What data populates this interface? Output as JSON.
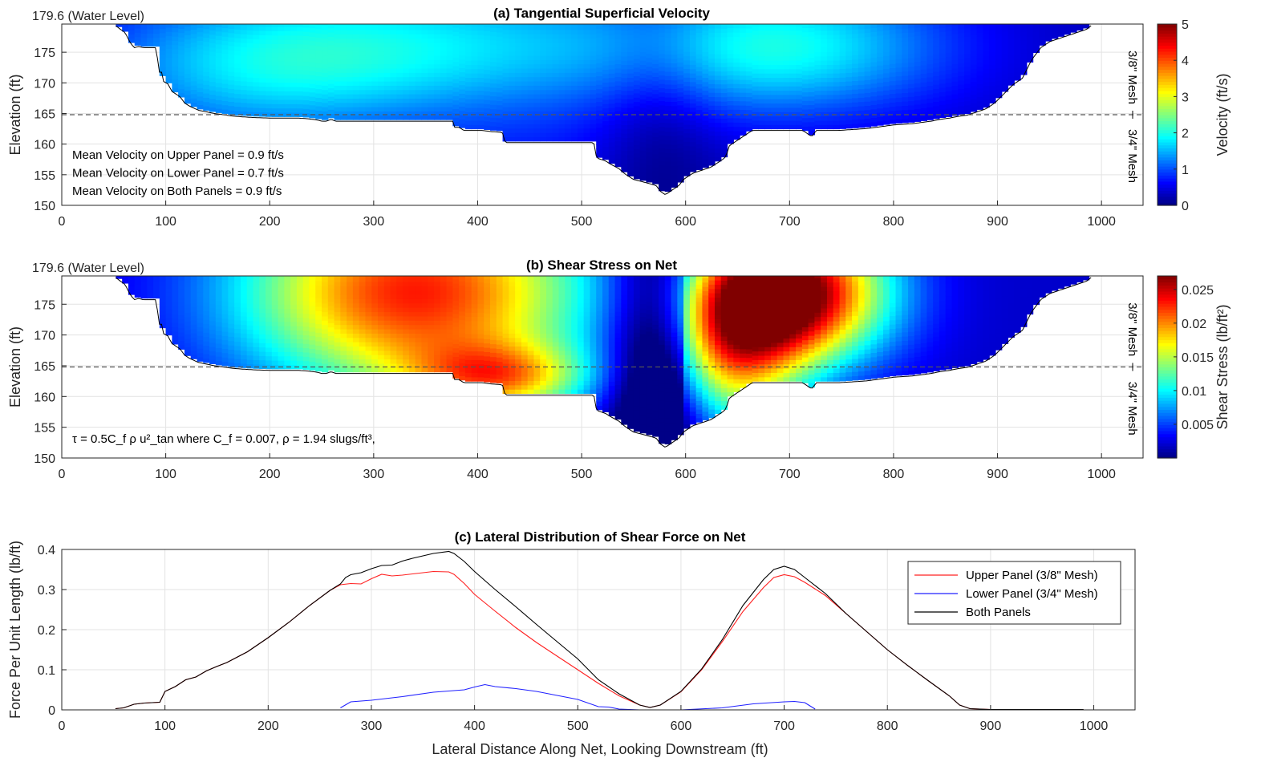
{
  "chart_data": [
    {
      "id": "velocity",
      "type": "heatmap",
      "title": "(a) Tangential Superficial Velocity",
      "ylabel": "Elevation (ft)",
      "xlim": [
        0,
        1040
      ],
      "ylim": [
        150,
        179.6
      ],
      "xticks": [
        0,
        100,
        200,
        300,
        400,
        500,
        600,
        700,
        800,
        900,
        1000
      ],
      "yticks": [
        150,
        155,
        160,
        165,
        170,
        175
      ],
      "water_level_label": "179.6 (Water Level)",
      "panel_divide_elevation": 164.8,
      "mesh_labels": [
        "3/8\" Mesh",
        "3/4\" Mesh"
      ],
      "colorbar": {
        "label": "Velocity (ft/s)",
        "range": [
          0,
          5
        ],
        "ticks": [
          0,
          1,
          2,
          3,
          4,
          5
        ]
      },
      "field_peaks": [
        {
          "x": 360,
          "z": 176,
          "value": 1.6
        },
        {
          "x": 180,
          "z": 172,
          "value": 1.2
        },
        {
          "x": 700,
          "z": 176,
          "value": 1.75
        },
        {
          "x": 570,
          "z": 168,
          "value": 0.1
        }
      ],
      "annotations": [
        "Mean Velocity on Upper Panel = 0.9 ft/s",
        "Mean Velocity on Lower Panel = 0.7 ft/s",
        "Mean Velocity on Both Panels = 0.9 ft/s"
      ]
    },
    {
      "id": "shear",
      "type": "heatmap",
      "title": "(b) Shear Stress on Net",
      "ylabel": "Elevation (ft)",
      "xlim": [
        0,
        1040
      ],
      "ylim": [
        150,
        179.6
      ],
      "xticks": [
        0,
        100,
        200,
        300,
        400,
        500,
        600,
        700,
        800,
        900,
        1000
      ],
      "yticks": [
        150,
        155,
        160,
        165,
        170,
        175
      ],
      "water_level_label": "179.6 (Water Level)",
      "panel_divide_elevation": 164.8,
      "mesh_labels": [
        "3/8\" Mesh",
        "3/4\" Mesh"
      ],
      "colorbar": {
        "label": "Shear Stress (lb/ft²)",
        "range": [
          0,
          0.027
        ],
        "ticks": [
          0.005,
          0.01,
          0.015,
          0.02,
          0.025
        ]
      },
      "annotations": [
        "τ = 0.5C_f ρ u²_tan where C_f = 0.007, ρ = 1.94 slugs/ft³,"
      ]
    },
    {
      "id": "force",
      "type": "line",
      "title": "(c) Lateral Distribution of Shear Force on Net",
      "xlabel": "Lateral Distance Along Net, Looking Downstream (ft)",
      "ylabel": "Force Per Unit Length (lb/ft)",
      "xlim": [
        0,
        1040
      ],
      "ylim": [
        0,
        0.4
      ],
      "xticks": [
        0,
        100,
        200,
        300,
        400,
        500,
        600,
        700,
        800,
        900,
        1000
      ],
      "yticks": [
        0,
        0.1,
        0.2,
        0.3,
        0.4
      ],
      "legend_position": "top-right",
      "series": [
        {
          "name": "Upper Panel (3/8\" Mesh)",
          "color": "#ff2020",
          "x": [
            52,
            60,
            70,
            80,
            95,
            100,
            110,
            120,
            130,
            140,
            150,
            160,
            180,
            200,
            220,
            240,
            260,
            270,
            280,
            290,
            300,
            310,
            320,
            330,
            340,
            360,
            375,
            380,
            390,
            400,
            420,
            440,
            460,
            480,
            500,
            520,
            540,
            560,
            570,
            580,
            600,
            620,
            640,
            660,
            680,
            690,
            700,
            710,
            720,
            740,
            760,
            780,
            800,
            820,
            840,
            860,
            870,
            880,
            900,
            950,
            990
          ],
          "y": [
            0.003,
            0.005,
            0.014,
            0.017,
            0.019,
            0.046,
            0.058,
            0.075,
            0.082,
            0.097,
            0.108,
            0.118,
            0.145,
            0.18,
            0.218,
            0.26,
            0.298,
            0.312,
            0.315,
            0.314,
            0.327,
            0.338,
            0.334,
            0.336,
            0.339,
            0.345,
            0.344,
            0.338,
            0.315,
            0.288,
            0.246,
            0.205,
            0.168,
            0.134,
            0.1,
            0.066,
            0.035,
            0.012,
            0.006,
            0.012,
            0.045,
            0.1,
            0.17,
            0.245,
            0.305,
            0.33,
            0.337,
            0.332,
            0.318,
            0.285,
            0.24,
            0.195,
            0.15,
            0.11,
            0.072,
            0.035,
            0.012,
            0.003,
            0.001,
            0.001,
            0.001
          ]
        },
        {
          "name": "Lower Panel (3/4\" Mesh)",
          "color": "#2020ff",
          "x": [
            270,
            280,
            300,
            330,
            360,
            390,
            400,
            410,
            420,
            440,
            460,
            480,
            500,
            520,
            530,
            540,
            560,
            600,
            640,
            670,
            700,
            710,
            720,
            725,
            730
          ],
          "y": [
            0.005,
            0.02,
            0.024,
            0.033,
            0.044,
            0.05,
            0.057,
            0.063,
            0.058,
            0.053,
            0.046,
            0.036,
            0.026,
            0.008,
            0.007,
            0.002,
            0.0,
            0.0,
            0.005,
            0.015,
            0.02,
            0.021,
            0.018,
            0.01,
            0.002
          ]
        },
        {
          "name": "Both Panels",
          "color": "#000000",
          "x": [
            52,
            60,
            70,
            80,
            95,
            100,
            110,
            120,
            130,
            140,
            150,
            160,
            180,
            200,
            220,
            240,
            260,
            270,
            275,
            280,
            290,
            300,
            310,
            320,
            330,
            340,
            360,
            375,
            380,
            390,
            400,
            420,
            440,
            460,
            480,
            500,
            520,
            540,
            560,
            570,
            580,
            600,
            620,
            640,
            660,
            680,
            690,
            700,
            710,
            720,
            740,
            760,
            780,
            800,
            820,
            840,
            860,
            870,
            880,
            900,
            950,
            990
          ],
          "y": [
            0.003,
            0.005,
            0.014,
            0.017,
            0.019,
            0.046,
            0.058,
            0.075,
            0.082,
            0.097,
            0.108,
            0.118,
            0.145,
            0.18,
            0.218,
            0.26,
            0.298,
            0.314,
            0.33,
            0.337,
            0.342,
            0.352,
            0.36,
            0.361,
            0.371,
            0.378,
            0.39,
            0.395,
            0.39,
            0.37,
            0.345,
            0.3,
            0.257,
            0.213,
            0.17,
            0.127,
            0.075,
            0.04,
            0.012,
            0.006,
            0.012,
            0.046,
            0.102,
            0.175,
            0.26,
            0.325,
            0.35,
            0.358,
            0.35,
            0.33,
            0.29,
            0.24,
            0.195,
            0.15,
            0.11,
            0.072,
            0.035,
            0.012,
            0.003,
            0.001,
            0.001,
            0.001
          ]
        }
      ]
    }
  ],
  "colors": {
    "axis": "#262626",
    "grid": "#e3e3e3",
    "divider": "#555555",
    "bed": "#000000"
  }
}
